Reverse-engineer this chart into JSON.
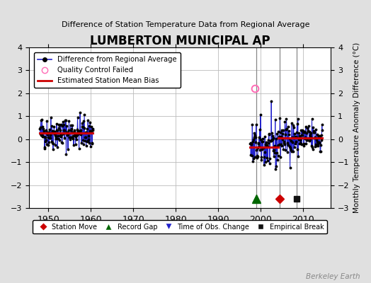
{
  "title": "LUMBERTON MUNICIPAL AP",
  "subtitle": "Difference of Station Temperature Data from Regional Average",
  "ylabel": "Monthly Temperature Anomaly Difference (°C)",
  "ylim": [
    -3,
    4
  ],
  "yticks": [
    -3,
    -2,
    -1,
    0,
    1,
    2,
    3,
    4
  ],
  "xlim": [
    1945.5,
    2016.5
  ],
  "xticks": [
    1950,
    1960,
    1970,
    1980,
    1990,
    2000,
    2010
  ],
  "background_color": "#e0e0e0",
  "plot_bg_color": "#ffffff",
  "grid_color": "#bbbbbb",
  "seg1_start": 1948.0,
  "seg1_end": 1960.5,
  "seg1_bias": 0.28,
  "seg2_start": 1997.5,
  "seg2_end": 2004.1,
  "seg2_bias": -0.33,
  "seg3_start": 2004.1,
  "seg3_end": 2014.5,
  "seg3_bias": 0.05,
  "vline1_x": 1999.0,
  "vline2_x": 2004.5,
  "vline3_x": 2008.5,
  "qc_fail_x": 1998.7,
  "qc_fail_y": 2.2,
  "record_gap_x": 1999.0,
  "record_gap_y": -2.6,
  "station_move_x": 2004.5,
  "station_move_y": -2.6,
  "empirical_break_x": 2008.5,
  "empirical_break_y": -2.6,
  "line_color": "#2222cc",
  "bias_color": "#cc0000",
  "qc_color": "#ff69b4",
  "station_move_color": "#cc0000",
  "record_gap_color": "#006600",
  "time_obs_color": "#2222cc",
  "empirical_break_color": "#111111",
  "watermark": "Berkeley Earth"
}
